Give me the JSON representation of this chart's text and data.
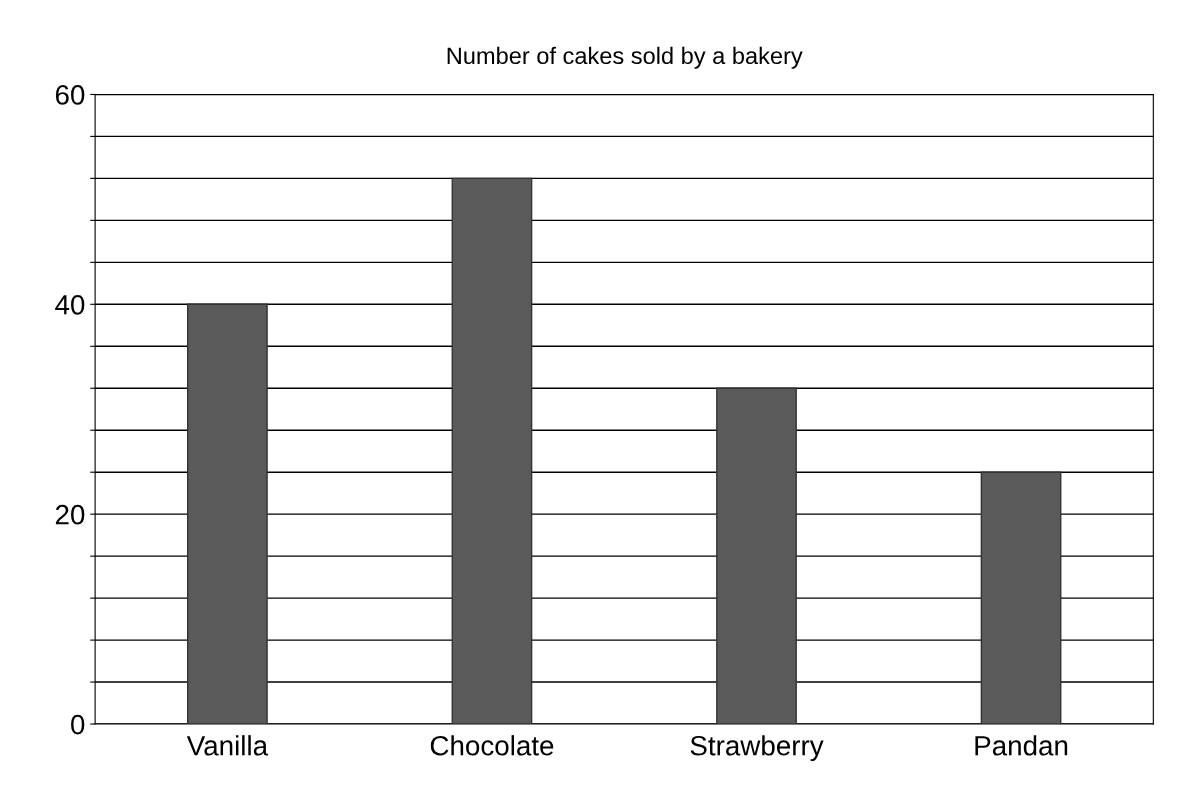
{
  "chart_data": {
    "type": "bar",
    "title": "Number of cakes sold by a bakery",
    "categories": [
      "Vanilla",
      "Chocolate",
      "Strawberry",
      "Pandan"
    ],
    "values": [
      40,
      52,
      32,
      24
    ],
    "color": "#5a5a5a",
    "ylim": [
      0,
      60
    ],
    "yticks": [
      0,
      {
        "value": 4,
        "label": null
      },
      {
        "value": 8,
        "label": null
      },
      {
        "value": 12,
        "label": null
      },
      {
        "value": 16,
        "label": null
      },
      20,
      {
        "value": 24,
        "label": null
      },
      {
        "value": 28,
        "label": null
      },
      {
        "value": 32,
        "label": null
      },
      {
        "value": 36,
        "label": null
      },
      40,
      {
        "value": 44,
        "label": null
      },
      {
        "value": 48,
        "label": null
      },
      {
        "value": 52,
        "label": null
      },
      {
        "value": 56,
        "label": null
      },
      60
    ],
    "grid": "y"
  }
}
